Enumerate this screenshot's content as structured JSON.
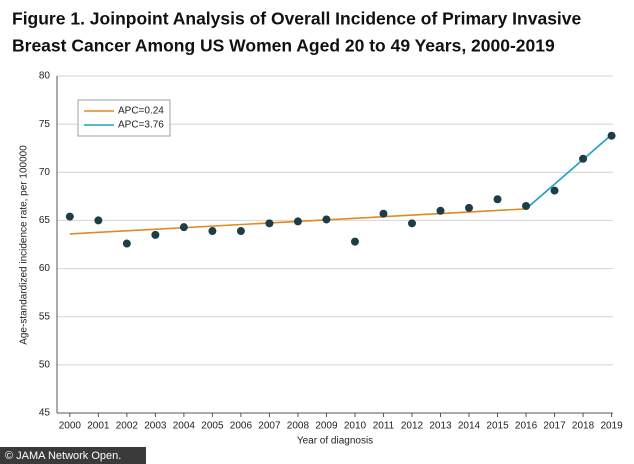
{
  "chart_data": {
    "type": "scatter",
    "title": [
      "Figure 1.  Joinpoint Analysis of Overall Incidence of Primary Invasive",
      "Breast Cancer Among US Women Aged 20 to 49 Years, 2000-2019"
    ],
    "x_label": "Year of diagnosis",
    "y_label": "Age-standardized incidence rate, per 100000",
    "source": "© JAMA Network Open.",
    "xlim": [
      1999.55,
      2019.05
    ],
    "ylim": [
      45,
      80
    ],
    "xticks": [
      2000,
      2001,
      2002,
      2003,
      2004,
      2005,
      2006,
      2007,
      2008,
      2009,
      2010,
      2011,
      2012,
      2013,
      2014,
      2015,
      2016,
      2017,
      2018,
      2019
    ],
    "yticks": [
      45,
      50,
      55,
      60,
      65,
      70,
      75,
      80
    ],
    "grid": true,
    "legend": "upper left",
    "series": [
      {
        "type": "scatter",
        "color": "#1e3d48",
        "x": [
          2000,
          2001,
          2002,
          2003,
          2004,
          2005,
          2006,
          2007,
          2008,
          2009,
          2010,
          2011,
          2012,
          2013,
          2014,
          2015,
          2016,
          2017,
          2018,
          2019
        ],
        "values": [
          65.4,
          65.0,
          62.6,
          63.5,
          64.3,
          63.9,
          63.9,
          64.7,
          64.9,
          65.1,
          62.8,
          65.7,
          64.7,
          66.0,
          66.3,
          67.2,
          66.5,
          68.1,
          71.4,
          73.8
        ]
      },
      {
        "type": "line",
        "name": "APC=0.24",
        "color": "#e08a22",
        "x": [
          2000,
          2016
        ],
        "values": [
          63.6,
          66.2
        ]
      },
      {
        "type": "line",
        "name": "APC=3.76",
        "color": "#1ea0c3",
        "x": [
          2016,
          2019
        ],
        "values": [
          66.2,
          73.9
        ]
      }
    ]
  }
}
